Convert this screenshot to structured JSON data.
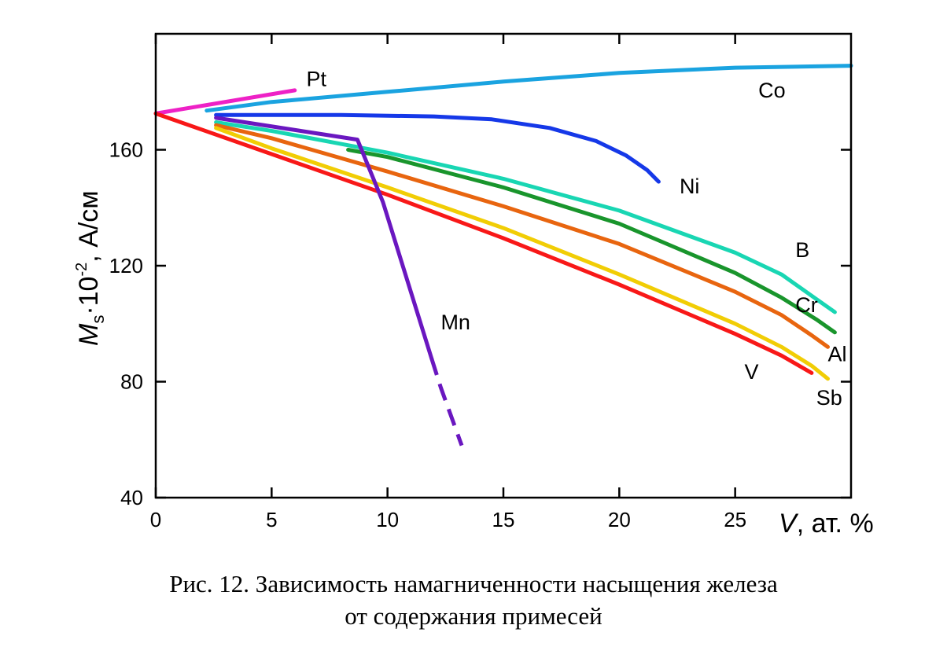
{
  "chart_data": {
    "type": "line",
    "xlabel_symbol": "V",
    "xlabel_unit": ", ат. %",
    "ylabel_symbol": "M",
    "ylabel_sub": "s",
    "ylabel_mid": "·10",
    "ylabel_sup": "-2",
    "ylabel_unit": ", А/см",
    "xlim": [
      0,
      30
    ],
    "ylim": [
      40,
      200
    ],
    "x_ticks": [
      0,
      5,
      10,
      15,
      20,
      25
    ],
    "y_ticks": [
      40,
      80,
      120,
      160
    ],
    "grid": false,
    "series": [
      {
        "name": "Co",
        "color": "#1aa3e0",
        "points": [
          [
            2.2,
            173.5
          ],
          [
            5,
            176.5
          ],
          [
            10,
            180
          ],
          [
            15,
            183.5
          ],
          [
            20,
            186.5
          ],
          [
            25,
            188.3
          ],
          [
            30,
            189
          ]
        ]
      },
      {
        "name": "Pt",
        "color": "#ee21c6",
        "points": [
          [
            0,
            172.5
          ],
          [
            6,
            180.5
          ]
        ]
      },
      {
        "name": "Ni",
        "color": "#1538e8",
        "points": [
          [
            2.6,
            172
          ],
          [
            8,
            172
          ],
          [
            12,
            171.5
          ],
          [
            14.5,
            170.5
          ],
          [
            17,
            167.5
          ],
          [
            19,
            163
          ],
          [
            20.3,
            158
          ],
          [
            21.2,
            153
          ],
          [
            21.7,
            149
          ]
        ]
      },
      {
        "name": "B",
        "color": "#19d6b3",
        "points": [
          [
            2.6,
            169.5
          ],
          [
            5,
            166.5
          ],
          [
            10,
            159
          ],
          [
            15,
            150
          ],
          [
            20,
            139
          ],
          [
            25,
            124.5
          ],
          [
            27,
            117
          ],
          [
            28.5,
            108.5
          ],
          [
            29.3,
            104
          ]
        ]
      },
      {
        "name": "Cr",
        "color": "#19952c",
        "points": [
          [
            8.3,
            160
          ],
          [
            10,
            157.5
          ],
          [
            15,
            147
          ],
          [
            20,
            134.5
          ],
          [
            25,
            117.5
          ],
          [
            27,
            109
          ],
          [
            28.5,
            101.5
          ],
          [
            29.3,
            97
          ]
        ]
      },
      {
        "name": "Al",
        "color": "#e8650f",
        "points": [
          [
            2.6,
            168.5
          ],
          [
            5,
            164
          ],
          [
            10,
            152.5
          ],
          [
            15,
            140.5
          ],
          [
            20,
            127.5
          ],
          [
            25,
            111
          ],
          [
            27,
            103
          ],
          [
            28.3,
            96
          ],
          [
            29,
            92
          ]
        ]
      },
      {
        "name": "V",
        "color": "#f1cd05",
        "points": [
          [
            2.6,
            167.5
          ],
          [
            5,
            160.5
          ],
          [
            10,
            147
          ],
          [
            15,
            133
          ],
          [
            20,
            117
          ],
          [
            25,
            100
          ],
          [
            27,
            92
          ],
          [
            28.3,
            85.5
          ],
          [
            29,
            81
          ]
        ]
      },
      {
        "name": "Sb",
        "color": "#f81818",
        "points": [
          [
            0,
            172.5
          ],
          [
            5,
            158.5
          ],
          [
            10,
            144.5
          ],
          [
            15,
            129.5
          ],
          [
            20,
            113.5
          ],
          [
            25,
            96.5
          ],
          [
            27,
            89
          ],
          [
            28.3,
            83
          ]
        ]
      },
      {
        "name": "Mn",
        "color": "#6a17c0",
        "points": [
          [
            2.6,
            171
          ],
          [
            8.7,
            163.5
          ],
          [
            9.8,
            142
          ],
          [
            11.9,
            88
          ],
          [
            12.3,
            78
          ],
          [
            13.2,
            58
          ]
        ],
        "dashed_from_x": 11.9
      }
    ],
    "labels": [
      {
        "text": "Pt",
        "x": 6.5,
        "y": 182
      },
      {
        "text": "Co",
        "x": 26,
        "y": 178
      },
      {
        "text": "Ni",
        "x": 22.6,
        "y": 145
      },
      {
        "text": "B",
        "x": 27.6,
        "y": 123
      },
      {
        "text": "Cr",
        "x": 27.6,
        "y": 104
      },
      {
        "text": "Mn",
        "x": 12.3,
        "y": 98
      },
      {
        "text": "Al",
        "x": 29,
        "y": 87
      },
      {
        "text": "V",
        "x": 25.4,
        "y": 81
      },
      {
        "text": "Sb",
        "x": 28.5,
        "y": 72
      }
    ]
  },
  "caption": {
    "line1": "Рис. 12. Зависимость намагниченности насыщения железа",
    "line2": "от содержания примесей"
  }
}
